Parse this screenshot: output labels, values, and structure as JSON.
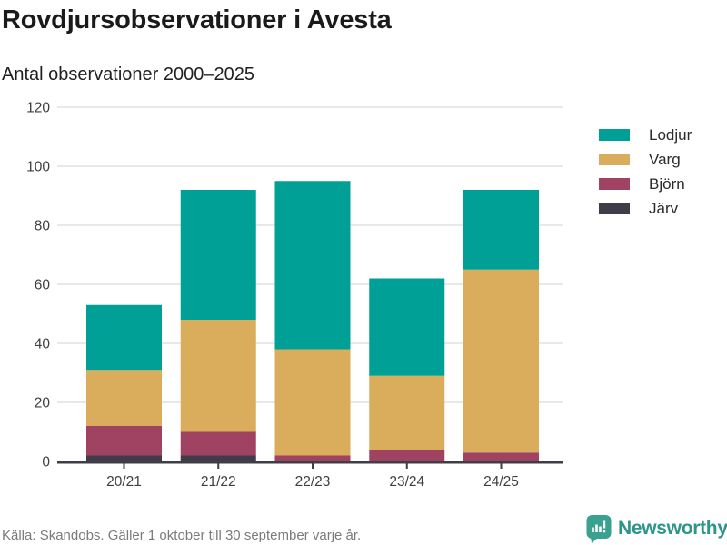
{
  "header": {
    "title": "Rovdjursobservationer i Avesta",
    "subtitle": "Antal observationer 2000–2025"
  },
  "chart_data": {
    "type": "bar",
    "stacked": true,
    "title": "Rovdjursobservationer i Avesta",
    "subtitle": "Antal observationer 2000–2025",
    "categories": [
      "20/21",
      "21/22",
      "22/23",
      "23/24",
      "24/25"
    ],
    "series": [
      {
        "name": "Järv",
        "color": "#403d4b",
        "values": [
          2,
          2,
          0,
          0,
          0
        ]
      },
      {
        "name": "Björn",
        "color": "#a04262",
        "values": [
          10,
          8,
          2,
          4,
          3
        ]
      },
      {
        "name": "Varg",
        "color": "#d9ad5c",
        "values": [
          19,
          38,
          36,
          25,
          62
        ]
      },
      {
        "name": "Lodjur",
        "color": "#00a096",
        "values": [
          22,
          44,
          57,
          33,
          27
        ]
      }
    ],
    "totals": [
      53,
      92,
      95,
      62,
      92
    ],
    "xlabel": "",
    "ylabel": "",
    "ylim": [
      0,
      120
    ],
    "yticks": [
      0,
      20,
      40,
      60,
      80,
      100,
      120
    ],
    "grid": true,
    "legend_position": "right",
    "legend_order": [
      "Lodjur",
      "Varg",
      "Björn",
      "Järv"
    ]
  },
  "footer": {
    "source": "Källa: Skandobs. Gäller 1 oktober till 30 september varje år."
  },
  "logo": {
    "text": "Newsworthy",
    "icon": "newsworthy-speech-bubble-bar-chart-icon",
    "icon_color": "#3aa08f",
    "text_color": "#2e9589"
  },
  "colors": {
    "grid": "#e8e8e8",
    "axis": "#3f3d46",
    "tick_label": "#3f3f3f",
    "title": "#1a1a1a",
    "source": "#7b7b7b"
  }
}
